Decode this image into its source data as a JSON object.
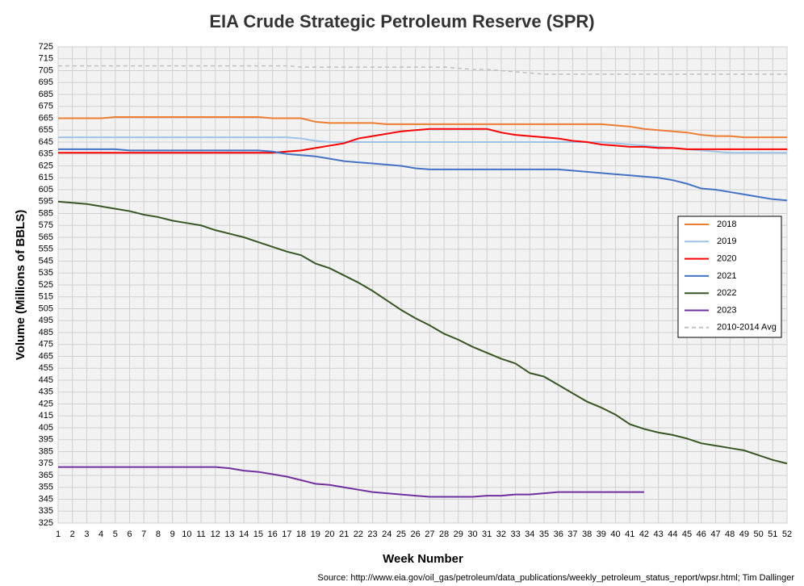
{
  "chart_data": {
    "type": "line",
    "title": "EIA Crude Strategic Petroleum Reserve (SPR)",
    "xlabel": "Week Number",
    "ylabel": "Volume (Millions of BBLS)",
    "source": "Source: http://www.eia.gov/oil_gas/petroleum/data_publications/weekly_petroleum_status_report/wpsr.html; Tim Dallinger",
    "x": [
      1,
      2,
      3,
      4,
      5,
      6,
      7,
      8,
      9,
      10,
      11,
      12,
      13,
      14,
      15,
      16,
      17,
      18,
      19,
      20,
      21,
      22,
      23,
      24,
      25,
      26,
      27,
      28,
      29,
      30,
      31,
      32,
      33,
      34,
      35,
      36,
      37,
      38,
      39,
      40,
      41,
      42,
      43,
      44,
      45,
      46,
      47,
      48,
      49,
      50,
      51,
      52
    ],
    "xlim": [
      1,
      52
    ],
    "xticks": [
      1,
      2,
      3,
      4,
      5,
      6,
      7,
      8,
      9,
      10,
      11,
      12,
      13,
      14,
      15,
      16,
      17,
      18,
      19,
      20,
      21,
      22,
      23,
      24,
      25,
      26,
      27,
      28,
      29,
      30,
      31,
      32,
      33,
      34,
      35,
      36,
      37,
      38,
      39,
      40,
      41,
      42,
      43,
      44,
      45,
      46,
      47,
      48,
      49,
      50,
      51,
      52
    ],
    "ylim": [
      325,
      725
    ],
    "yticks": [
      325,
      335,
      345,
      355,
      365,
      375,
      385,
      395,
      405,
      415,
      425,
      435,
      445,
      455,
      465,
      475,
      485,
      495,
      505,
      515,
      525,
      535,
      545,
      555,
      565,
      575,
      585,
      595,
      605,
      615,
      625,
      635,
      645,
      655,
      665,
      675,
      685,
      695,
      705,
      715,
      725
    ],
    "grid": true,
    "legend_position": "center right",
    "series": [
      {
        "name": "2018",
        "color": "#ed7d31",
        "values": [
          665,
          665,
          665,
          665,
          666,
          666,
          666,
          666,
          666,
          666,
          666,
          666,
          666,
          666,
          666,
          665,
          665,
          665,
          662,
          661,
          661,
          661,
          661,
          660,
          660,
          660,
          660,
          660,
          660,
          660,
          660,
          660,
          660,
          660,
          660,
          660,
          660,
          660,
          660,
          659,
          658,
          656,
          655,
          654,
          653,
          651,
          650,
          650,
          649,
          649,
          649,
          649
        ]
      },
      {
        "name": "2019",
        "color": "#9dc3e6",
        "values": [
          649,
          649,
          649,
          649,
          649,
          649,
          649,
          649,
          649,
          649,
          649,
          649,
          649,
          649,
          649,
          649,
          649,
          648,
          646,
          645,
          645,
          645,
          645,
          645,
          645,
          645,
          645,
          645,
          645,
          645,
          645,
          645,
          645,
          645,
          645,
          645,
          645,
          645,
          645,
          644,
          643,
          642,
          641,
          640,
          639,
          638,
          637,
          636,
          636,
          636,
          636,
          636
        ]
      },
      {
        "name": "2020",
        "color": "#ff0000",
        "values": [
          636,
          636,
          636,
          636,
          636,
          636,
          636,
          636,
          636,
          636,
          636,
          636,
          636,
          636,
          636,
          636,
          637,
          638,
          640,
          642,
          644,
          648,
          650,
          652,
          654,
          655,
          656,
          656,
          656,
          656,
          656,
          653,
          651,
          650,
          649,
          648,
          646,
          645,
          643,
          642,
          641,
          641,
          640,
          640,
          639,
          639,
          639,
          639,
          639,
          639,
          639,
          639
        ]
      },
      {
        "name": "2021",
        "color": "#4472c4",
        "values": [
          639,
          639,
          639,
          639,
          639,
          638,
          638,
          638,
          638,
          638,
          638,
          638,
          638,
          638,
          638,
          637,
          635,
          634,
          633,
          631,
          629,
          628,
          627,
          626,
          625,
          623,
          622,
          622,
          622,
          622,
          622,
          622,
          622,
          622,
          622,
          622,
          621,
          620,
          619,
          618,
          617,
          616,
          615,
          613,
          610,
          606,
          605,
          603,
          601,
          599,
          597,
          596
        ]
      },
      {
        "name": "2022",
        "color": "#375623",
        "values": [
          595,
          594,
          593,
          591,
          589,
          587,
          584,
          582,
          579,
          577,
          575,
          571,
          568,
          565,
          561,
          557,
          553,
          550,
          543,
          539,
          533,
          527,
          520,
          512,
          504,
          497,
          491,
          484,
          479,
          473,
          468,
          463,
          459,
          451,
          448,
          441,
          434,
          427,
          422,
          416,
          408,
          404,
          401,
          399,
          396,
          392,
          390,
          388,
          386,
          382,
          378,
          375
        ]
      },
      {
        "name": "2023",
        "color": "#7030a0",
        "values": [
          372,
          372,
          372,
          372,
          372,
          372,
          372,
          372,
          372,
          372,
          372,
          372,
          371,
          369,
          368,
          366,
          364,
          361,
          358,
          357,
          355,
          353,
          351,
          350,
          349,
          348,
          347,
          347,
          347,
          347,
          348,
          348,
          349,
          349,
          350,
          351,
          351,
          351,
          351,
          351,
          351,
          351,
          null,
          null,
          null,
          null,
          null,
          null,
          null,
          null,
          null,
          null
        ]
      },
      {
        "name": "2010-2014 Avg",
        "color": "#bfbfbf",
        "dashed": true,
        "values": [
          709,
          709,
          709,
          709,
          709,
          709,
          709,
          709,
          709,
          709,
          709,
          709,
          709,
          709,
          709,
          709,
          709,
          708,
          708,
          708,
          708,
          708,
          708,
          708,
          708,
          708,
          708,
          708,
          707,
          706,
          706,
          705,
          704,
          703,
          702,
          702,
          702,
          702,
          702,
          702,
          702,
          702,
          702,
          702,
          702,
          702,
          702,
          702,
          702,
          702,
          702,
          702
        ]
      }
    ]
  }
}
